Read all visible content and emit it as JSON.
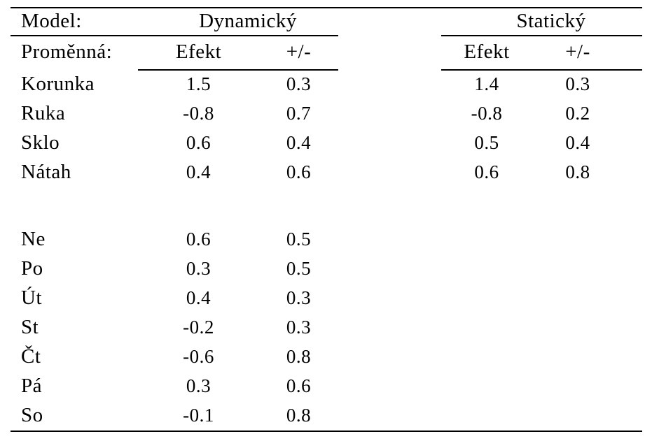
{
  "colors": {
    "background": "#ffffff",
    "text": "#000000",
    "rule": "#000000"
  },
  "chart_data": {
    "type": "table",
    "title": "",
    "header": {
      "model_label": "Model:",
      "variable_label": "Proměnná:",
      "groups": [
        "Dynamický",
        "Statický"
      ],
      "subcolumns": [
        "Efekt",
        "+/-"
      ]
    },
    "variable_rows": [
      {
        "label": "Korunka",
        "dyn_efekt": "1.5",
        "dyn_pm": "0.3",
        "stat_efekt": "1.4",
        "stat_pm": "0.3"
      },
      {
        "label": "Ruka",
        "dyn_efekt": "-0.8",
        "dyn_pm": "0.7",
        "stat_efekt": "-0.8",
        "stat_pm": "0.2"
      },
      {
        "label": "Sklo",
        "dyn_efekt": "0.6",
        "dyn_pm": "0.4",
        "stat_efekt": "0.5",
        "stat_pm": "0.4"
      },
      {
        "label": "Nátah",
        "dyn_efekt": "0.4",
        "dyn_pm": "0.6",
        "stat_efekt": "0.6",
        "stat_pm": "0.8"
      }
    ],
    "day_rows": [
      {
        "label": "Ne",
        "dyn_efekt": "0.6",
        "dyn_pm": "0.5",
        "stat_efekt": "",
        "stat_pm": ""
      },
      {
        "label": "Po",
        "dyn_efekt": "0.3",
        "dyn_pm": "0.5",
        "stat_efekt": "",
        "stat_pm": ""
      },
      {
        "label": "Út",
        "dyn_efekt": "0.4",
        "dyn_pm": "0.3",
        "stat_efekt": "",
        "stat_pm": ""
      },
      {
        "label": "St",
        "dyn_efekt": "-0.2",
        "dyn_pm": "0.3",
        "stat_efekt": "",
        "stat_pm": ""
      },
      {
        "label": "Čt",
        "dyn_efekt": "-0.6",
        "dyn_pm": "0.8",
        "stat_efekt": "",
        "stat_pm": ""
      },
      {
        "label": "Pá",
        "dyn_efekt": "0.3",
        "dyn_pm": "0.6",
        "stat_efekt": "",
        "stat_pm": ""
      },
      {
        "label": "So",
        "dyn_efekt": "-0.1",
        "dyn_pm": "0.8",
        "stat_efekt": "",
        "stat_pm": ""
      }
    ]
  }
}
